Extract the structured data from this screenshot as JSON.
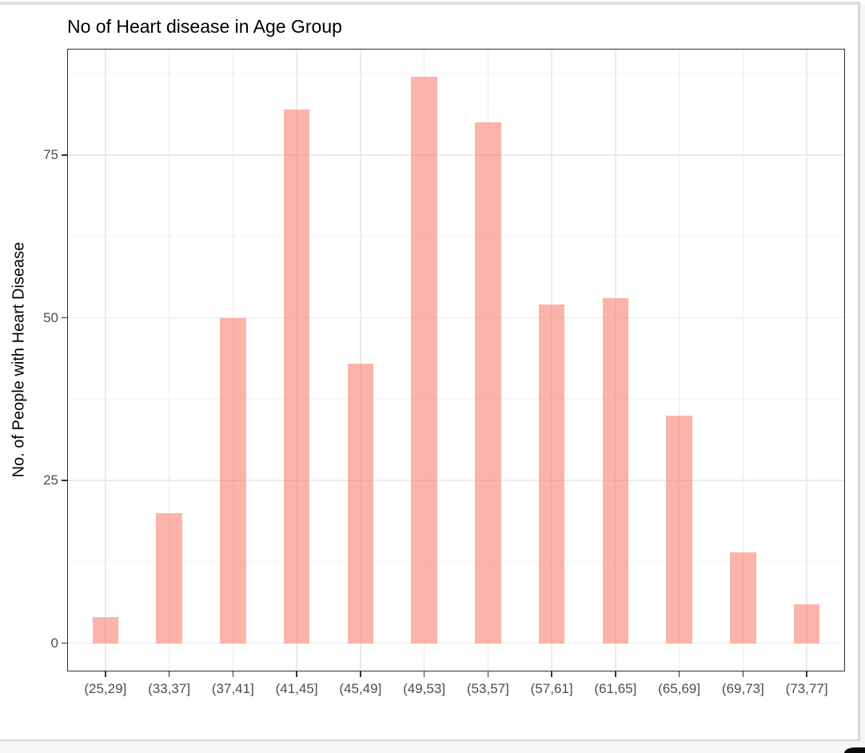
{
  "window": {
    "top_strip_color": "#dde0e4",
    "frame_border_color": "#d4d7db",
    "gutter_color": "#f4f5f7",
    "corner_shape_color": "#0a0a0a",
    "corner_shape": "black-rounded-corner"
  },
  "chart_data": {
    "type": "bar",
    "title": "No of Heart disease in Age Group",
    "xlabel": "",
    "ylabel": "No. of People with Heart Disease",
    "categories": [
      "(25,29]",
      "(33,37]",
      "(37,41]",
      "(41,45]",
      "(45,49]",
      "(49,53]",
      "(53,57]",
      "(57,61]",
      "(61,65]",
      "(65,69]",
      "(69,73]",
      "(73,77]"
    ],
    "values": [
      4,
      20,
      50,
      82,
      43,
      87,
      80,
      52,
      53,
      35,
      14,
      6
    ],
    "ylim": [
      0,
      87
    ],
    "y_expand_mult": 0.05,
    "x_expand_add": 0.6,
    "yticks": [
      0,
      25,
      50,
      75
    ],
    "yticks_minor": [
      12.5,
      37.5,
      62.5,
      87.5
    ],
    "grid": true,
    "legend": false,
    "bar_rel_width": 0.41,
    "bar_color": "rgba(250,128,114,0.6)",
    "grid_major_color": "#ebebeb",
    "grid_minor_color": "#f4f4f4",
    "panel_border_color": "#2f2f2f",
    "axis_tick_color": "#333333",
    "tick_label_color": "#4d4d4d",
    "title_color": "#000000"
  }
}
